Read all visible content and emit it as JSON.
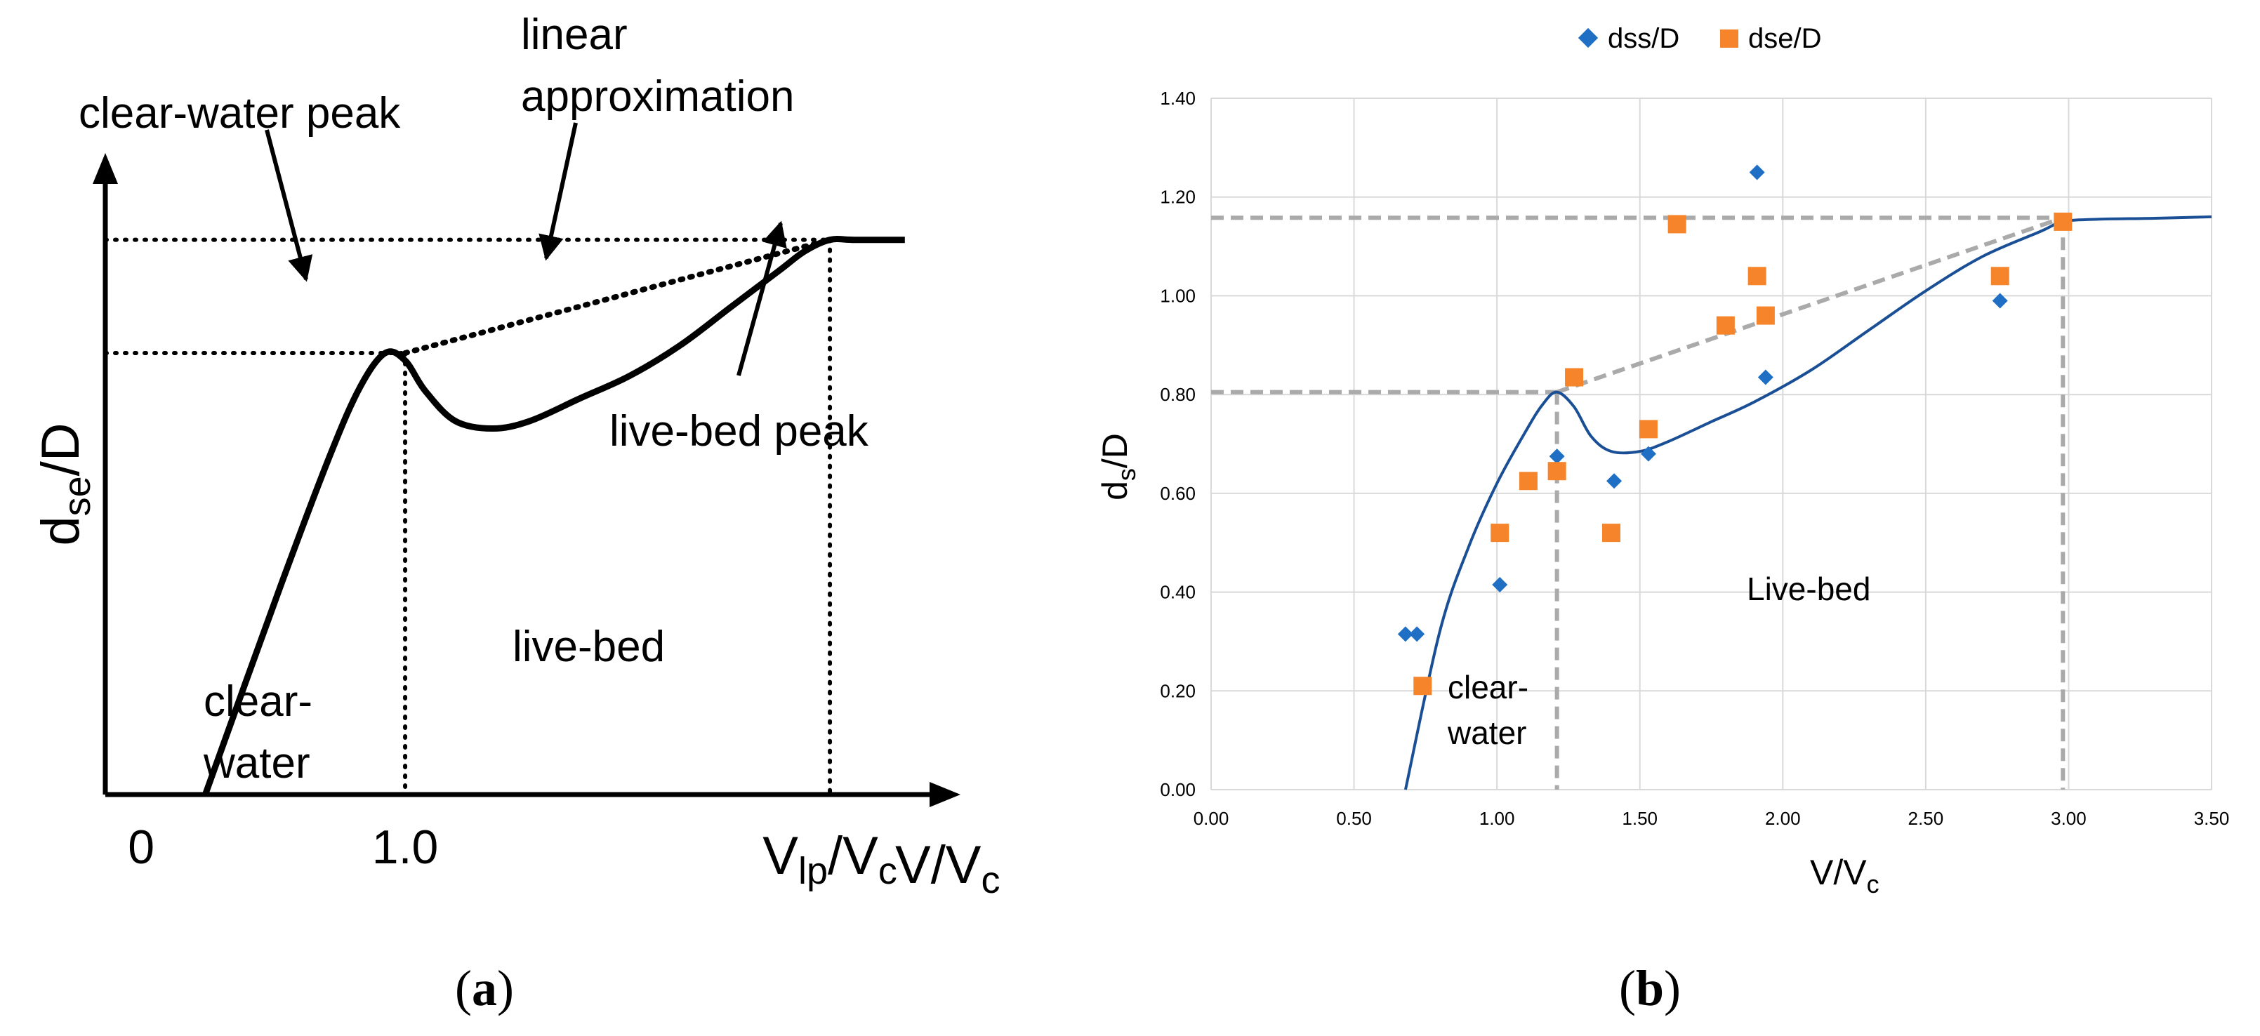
{
  "chart_data": [
    {
      "panel": "(a)",
      "type": "line",
      "ylabel": "d",
      "ylabel_sub": "se",
      "ylabel_tail": "/D",
      "xlabel": "V/V",
      "xlabel_sub": "c",
      "x_ticks": [
        {
          "label": "0",
          "x": 0
        },
        {
          "label": "1.0",
          "x": 1.0
        }
      ],
      "vlp_tick": {
        "main": "V",
        "sub": "lp",
        "mid": "/V",
        "sub2": "c",
        "x": 2.7
      },
      "xlim": [
        -0.2,
        3.2
      ],
      "ylim": [
        0,
        1.7
      ],
      "curve": {
        "name": "scour depth curve",
        "x": [
          0.2,
          0.5,
          0.7,
          0.82,
          0.92,
          1.0,
          1.08,
          1.2,
          1.35,
          1.5,
          1.7,
          1.9,
          2.1,
          2.3,
          2.5,
          2.6,
          2.7,
          2.8,
          3.0
        ],
        "y": [
          0.0,
          0.55,
          0.9,
          1.08,
          1.17,
          1.15,
          1.07,
          0.99,
          0.97,
          0.99,
          1.05,
          1.11,
          1.19,
          1.29,
          1.39,
          1.44,
          1.47,
          1.47,
          1.47
        ]
      },
      "linear_approximation": {
        "x": [
          1.0,
          2.7
        ],
        "y": [
          1.17,
          1.47
        ]
      },
      "peaks": {
        "clear_water": {
          "x": 1.0,
          "y": 1.17
        },
        "live_bed": {
          "x": 2.7,
          "y": 1.47
        }
      },
      "annotations": {
        "clear_water_peak": "clear-water peak",
        "linear_line1": "linear",
        "linear_line2": "approximation",
        "live_bed_peak": "live-bed peak",
        "live_bed": "live-bed",
        "clear_line1": "clear-",
        "clear_line2": "water"
      }
    },
    {
      "panel": "(b)",
      "type": "scatter",
      "ylabel": "d",
      "ylabel_sub": "s",
      "ylabel_tail": "/D",
      "xlabel": "V/V",
      "xlabel_sub": "c",
      "xlim": [
        0,
        3.5
      ],
      "ylim": [
        0,
        1.4
      ],
      "grid": true,
      "legend_position": "top",
      "x_ticks": [
        "0.00",
        "0.50",
        "1.00",
        "1.50",
        "2.00",
        "2.50",
        "3.00",
        "3.50"
      ],
      "x_tick_values": [
        0,
        0.5,
        1.0,
        1.5,
        2.0,
        2.5,
        3.0,
        3.5
      ],
      "y_ticks": [
        "0.00",
        "0.20",
        "0.40",
        "0.60",
        "0.80",
        "1.00",
        "1.20",
        "1.40"
      ],
      "y_tick_values": [
        0,
        0.2,
        0.4,
        0.6,
        0.8,
        1.0,
        1.2,
        1.4
      ],
      "series": [
        {
          "name": "dss/D",
          "marker": "diamond",
          "color": "#1f6fc5",
          "x": [
            0.68,
            0.72,
            1.01,
            1.21,
            1.41,
            1.53,
            1.91,
            1.94,
            2.76
          ],
          "y": [
            0.315,
            0.315,
            0.415,
            0.675,
            0.625,
            0.68,
            1.25,
            0.835,
            0.99
          ]
        },
        {
          "name": "dse/D",
          "marker": "square",
          "color": "#f5842a",
          "x": [
            0.74,
            1.01,
            1.11,
            1.21,
            1.27,
            1.4,
            1.53,
            1.63,
            1.8,
            1.91,
            1.94,
            2.76,
            2.98
          ],
          "y": [
            0.21,
            0.52,
            0.625,
            0.645,
            0.835,
            0.52,
            0.73,
            1.145,
            0.94,
            1.04,
            0.96,
            1.04,
            1.15
          ]
        }
      ],
      "fit_curve": {
        "color": "#1a4f96",
        "x": [
          0.68,
          0.8,
          0.9,
          1.0,
          1.1,
          1.16,
          1.21,
          1.27,
          1.33,
          1.4,
          1.5,
          1.6,
          1.75,
          1.9,
          2.1,
          2.3,
          2.5,
          2.7,
          2.9,
          2.98,
          3.1,
          3.3,
          3.5
        ],
        "y": [
          0.0,
          0.32,
          0.49,
          0.62,
          0.725,
          0.78,
          0.805,
          0.775,
          0.715,
          0.685,
          0.685,
          0.705,
          0.745,
          0.785,
          0.85,
          0.93,
          1.01,
          1.08,
          1.13,
          1.15,
          1.155,
          1.157,
          1.16
        ]
      },
      "guides": {
        "color": "#aaaaaa",
        "clear_water_peak": {
          "x": 1.21,
          "y": 0.805
        },
        "live_bed_peak": {
          "x": 2.98,
          "y": 1.158
        }
      },
      "annotations": {
        "clear_line1": "clear-",
        "clear_line2": "water",
        "live_bed": "Live-bed"
      }
    }
  ],
  "captions": {
    "a_open": "(",
    "a_letter": "a",
    "a_close": ")",
    "b_open": "(",
    "b_letter": "b",
    "b_close": ")"
  }
}
